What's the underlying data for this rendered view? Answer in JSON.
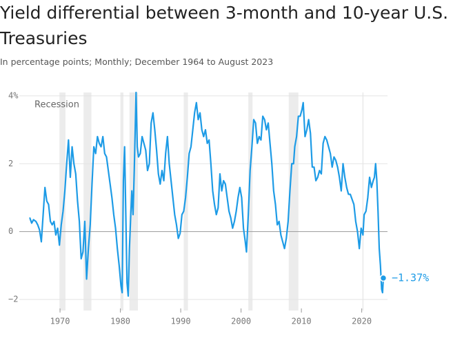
{
  "chart_data": {
    "type": "line",
    "title": "Yield differential between 3-month and 10-year U.S. Treasuries",
    "subtitle": "In percentage points; Monthly; December 1964 to August 2023",
    "color": "#1d9be6",
    "x": [
      1964.92,
      1965.0,
      1965.3,
      1965.6,
      1966.0,
      1966.3,
      1966.6,
      1966.9,
      1967.2,
      1967.5,
      1967.8,
      1968.1,
      1968.4,
      1968.7,
      1969.0,
      1969.3,
      1969.6,
      1969.9,
      1970.2,
      1970.5,
      1970.8,
      1971.1,
      1971.4,
      1971.7,
      1972.0,
      1972.3,
      1972.6,
      1972.9,
      1973.2,
      1973.5,
      1973.8,
      1974.1,
      1974.4,
      1974.7,
      1975.0,
      1975.3,
      1975.6,
      1975.9,
      1976.2,
      1976.5,
      1976.8,
      1977.1,
      1977.4,
      1977.7,
      1978.0,
      1978.3,
      1978.6,
      1978.9,
      1979.2,
      1979.5,
      1979.8,
      1980.1,
      1980.3,
      1980.5,
      1980.7,
      1980.9,
      1981.1,
      1981.3,
      1981.5,
      1981.7,
      1981.9,
      1982.1,
      1982.3,
      1982.6,
      1982.8,
      1983.0,
      1983.3,
      1983.6,
      1983.9,
      1984.2,
      1984.5,
      1984.8,
      1985.1,
      1985.4,
      1985.7,
      1986.0,
      1986.3,
      1986.6,
      1986.9,
      1987.2,
      1987.5,
      1987.8,
      1988.1,
      1988.4,
      1988.7,
      1989.0,
      1989.3,
      1989.6,
      1989.9,
      1990.2,
      1990.5,
      1990.8,
      1991.1,
      1991.4,
      1991.7,
      1992.0,
      1992.3,
      1992.6,
      1992.9,
      1993.2,
      1993.5,
      1993.8,
      1994.1,
      1994.4,
      1994.7,
      1995.0,
      1995.3,
      1995.6,
      1995.9,
      1996.2,
      1996.5,
      1996.8,
      1997.1,
      1997.4,
      1997.7,
      1998.0,
      1998.3,
      1998.6,
      1998.9,
      1999.2,
      1999.5,
      1999.8,
      2000.1,
      2000.4,
      2000.7,
      2000.9,
      2001.2,
      2001.5,
      2001.8,
      2002.1,
      2002.4,
      2002.7,
      2003.0,
      2003.3,
      2003.6,
      2003.9,
      2004.2,
      2004.5,
      2004.8,
      2005.1,
      2005.4,
      2005.7,
      2006.0,
      2006.3,
      2006.6,
      2006.9,
      2007.2,
      2007.5,
      2007.8,
      2008.1,
      2008.4,
      2008.7,
      2008.9,
      2009.2,
      2009.5,
      2009.8,
      2010.1,
      2010.3,
      2010.6,
      2010.9,
      2011.2,
      2011.5,
      2011.8,
      2012.1,
      2012.4,
      2012.7,
      2013.0,
      2013.3,
      2013.6,
      2013.9,
      2014.2,
      2014.5,
      2014.8,
      2015.1,
      2015.4,
      2015.7,
      2016.0,
      2016.3,
      2016.6,
      2016.9,
      2017.2,
      2017.5,
      2017.8,
      2018.1,
      2018.4,
      2018.7,
      2019.0,
      2019.3,
      2019.6,
      2019.9,
      2020.2,
      2020.4,
      2020.7,
      2021.0,
      2021.3,
      2021.6,
      2021.9,
      2022.1,
      2022.3,
      2022.5,
      2022.7,
      2022.9,
      2023.1,
      2023.3,
      2023.45,
      2023.58
    ],
    "values": [
      0.4,
      0.4,
      0.25,
      0.35,
      0.3,
      0.2,
      0.05,
      -0.3,
      0.5,
      1.3,
      0.9,
      0.8,
      0.3,
      0.2,
      0.3,
      -0.1,
      0.1,
      -0.4,
      0.2,
      0.6,
      1.2,
      2.0,
      2.7,
      1.6,
      2.5,
      2.0,
      1.7,
      0.9,
      0.3,
      -0.8,
      -0.6,
      0.3,
      -1.4,
      -0.5,
      0.2,
      1.4,
      2.5,
      2.3,
      2.8,
      2.6,
      2.5,
      2.8,
      2.3,
      2.2,
      1.8,
      1.4,
      1.0,
      0.5,
      0.1,
      -0.5,
      -1.0,
      -1.6,
      -1.8,
      1.5,
      2.5,
      0.5,
      -1.5,
      -1.9,
      -0.5,
      0.4,
      1.2,
      0.5,
      1.8,
      4.1,
      2.5,
      2.2,
      2.3,
      2.8,
      2.6,
      2.4,
      1.8,
      2.0,
      3.2,
      3.5,
      3.0,
      2.4,
      1.7,
      1.4,
      1.8,
      1.5,
      2.3,
      2.8,
      2.0,
      1.5,
      1.0,
      0.5,
      0.2,
      -0.2,
      -0.05,
      0.5,
      0.6,
      1.0,
      1.6,
      2.3,
      2.5,
      3.0,
      3.5,
      3.8,
      3.3,
      3.5,
      3.0,
      2.8,
      3.0,
      2.6,
      2.7,
      2.0,
      1.2,
      0.8,
      0.5,
      0.7,
      1.7,
      1.2,
      1.5,
      1.4,
      1.0,
      0.6,
      0.4,
      0.1,
      0.3,
      0.6,
      1.0,
      1.3,
      1.0,
      0.1,
      -0.3,
      -0.6,
      0.5,
      1.8,
      2.5,
      3.3,
      3.2,
      2.6,
      2.8,
      2.7,
      3.4,
      3.3,
      3.0,
      3.2,
      2.6,
      2.0,
      1.2,
      0.8,
      0.2,
      0.3,
      -0.1,
      -0.3,
      -0.5,
      -0.2,
      0.3,
      1.2,
      2.0,
      2.0,
      2.5,
      2.8,
      3.4,
      3.4,
      3.6,
      3.8,
      2.8,
      3.0,
      3.3,
      2.9,
      1.9,
      1.9,
      1.5,
      1.6,
      1.8,
      1.7,
      2.6,
      2.8,
      2.7,
      2.5,
      2.3,
      1.9,
      2.2,
      2.1,
      1.9,
      1.6,
      1.2,
      2.0,
      1.6,
      1.3,
      1.1,
      1.1,
      0.95,
      0.8,
      0.3,
      0.0,
      -0.5,
      0.1,
      -0.1,
      0.5,
      0.6,
      1.0,
      1.6,
      1.3,
      1.5,
      1.6,
      2.0,
      1.5,
      0.6,
      -0.5,
      -1.0,
      -1.7,
      -1.8,
      -1.37
    ],
    "end_label": {
      "x": 2023.58,
      "value": -1.37,
      "label": "−1.37%"
    },
    "recession_label": "Recession",
    "recessions": [
      [
        1969.9,
        1970.9
      ],
      [
        1973.9,
        1975.2
      ],
      [
        1980.0,
        1980.5
      ],
      [
        1981.5,
        1982.9
      ],
      [
        1990.5,
        1991.2
      ],
      [
        2001.2,
        2001.9
      ],
      [
        2007.9,
        2009.5
      ],
      [
        2020.1,
        2020.3
      ]
    ],
    "xlim": [
      1963.25,
      2024.27
    ],
    "xticks": [
      1970,
      1980,
      1990,
      2000,
      2010,
      2020
    ],
    "ylim": [
      -2,
      4.1
    ],
    "yticks": [
      {
        "value": -2,
        "label": "−2"
      },
      0,
      2,
      {
        "value": 4,
        "label": "4%"
      }
    ],
    "grid": true
  }
}
